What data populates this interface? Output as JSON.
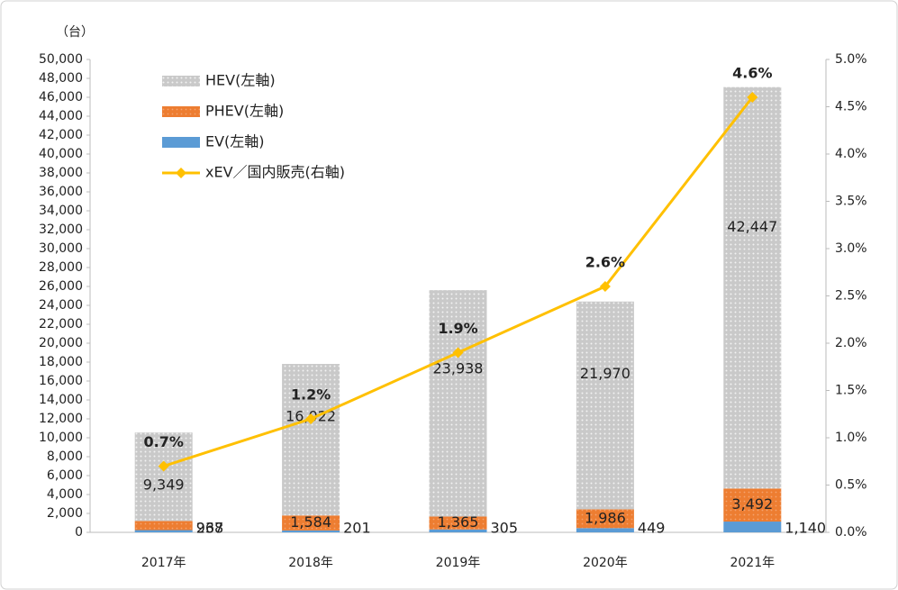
{
  "chart_data": {
    "type": "bar",
    "stacked": true,
    "y_axis_label": "（台）",
    "categories": [
      "2017年",
      "2018年",
      "2019年",
      "2020年",
      "2021年"
    ],
    "series": [
      {
        "name": "EV(左軸)",
        "color": "#5b9bd5",
        "values": [
          237,
          201,
          305,
          449,
          1140
        ],
        "value_labels": [
          "237",
          "201",
          "305",
          "449",
          "1,140"
        ]
      },
      {
        "name": "PHEV(左軸)",
        "color": "#ed7d31",
        "values": [
          968,
          1584,
          1365,
          1986,
          3492
        ],
        "value_labels": [
          "968",
          "1,584",
          "1,365",
          "1,986",
          "3,492"
        ]
      },
      {
        "name": "HEV(左軸)",
        "color": "#c9c9c9",
        "values": [
          9349,
          16022,
          23938,
          21970,
          42447
        ],
        "value_labels": [
          "9,349",
          "16,022",
          "23,938",
          "21,970",
          "42,447"
        ]
      },
      {
        "name": "xEV／国内販売(右軸)",
        "type": "line",
        "axis": "y2",
        "color": "#ffc000",
        "values": [
          0.7,
          1.2,
          1.9,
          2.6,
          4.6
        ],
        "value_labels": [
          "0.7%",
          "1.2%",
          "1.9%",
          "2.6%",
          "4.6%"
        ]
      }
    ],
    "ylim": [
      0,
      50000
    ],
    "yticks": [
      0,
      {
        "value": 2000,
        "label": "2,000"
      },
      {
        "value": 4000,
        "label": "4,000"
      },
      {
        "value": 6000,
        "label": "6,000"
      },
      {
        "value": 8000,
        "label": "8,000"
      },
      {
        "value": 10000,
        "label": "10,000"
      },
      {
        "value": 12000,
        "label": "12,000"
      },
      {
        "value": 14000,
        "label": "14,000"
      },
      {
        "value": 16000,
        "label": "16,000"
      },
      {
        "value": 18000,
        "label": "18,000"
      },
      {
        "value": 20000,
        "label": "20,000"
      },
      {
        "value": 22000,
        "label": "22,000"
      },
      {
        "value": 24000,
        "label": "24,000"
      },
      {
        "value": 26000,
        "label": "26,000"
      },
      {
        "value": 28000,
        "label": "28,000"
      },
      {
        "value": 30000,
        "label": "30,000"
      },
      {
        "value": 32000,
        "label": "32,000"
      },
      {
        "value": 34000,
        "label": "34,000"
      },
      {
        "value": 36000,
        "label": "36,000"
      },
      {
        "value": 38000,
        "label": "38,000"
      },
      {
        "value": 40000,
        "label": "40,000"
      },
      {
        "value": 42000,
        "label": "42,000"
      },
      {
        "value": 44000,
        "label": "44,000"
      },
      {
        "value": 46000,
        "label": "46,000"
      },
      {
        "value": 48000,
        "label": "48,000"
      },
      {
        "value": 50000,
        "label": "50,000"
      }
    ],
    "y2lim": [
      0,
      5
    ],
    "y2ticks": [
      {
        "value": 0,
        "label": "0.0%"
      },
      {
        "value": 0.5,
        "label": "0.5%"
      },
      {
        "value": 1,
        "label": "1.0%"
      },
      {
        "value": 1.5,
        "label": "1.5%"
      },
      {
        "value": 2,
        "label": "2.0%"
      },
      {
        "value": 2.5,
        "label": "2.5%"
      },
      {
        "value": 3,
        "label": "3.0%"
      },
      {
        "value": 3.5,
        "label": "3.5%"
      },
      {
        "value": 4,
        "label": "4.0%"
      },
      {
        "value": 4.5,
        "label": "4.5%"
      },
      {
        "value": 5,
        "label": "5.0%"
      }
    ],
    "legend_position": "top-left"
  }
}
